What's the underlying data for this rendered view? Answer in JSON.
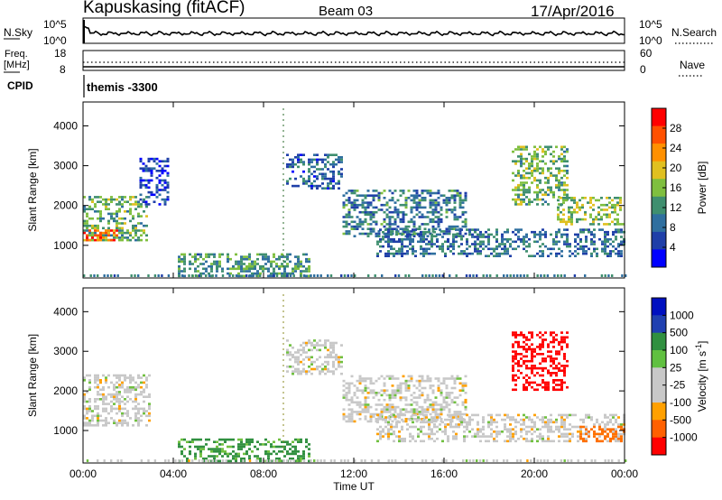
{
  "header": {
    "site": "Kapuskasing (fitACF)",
    "beam": "Beam 03",
    "date": "17/Apr/2016"
  },
  "nsky_panel": {
    "left_label": "N.Sky",
    "right_label": "N.Search",
    "left_ticks": [
      "10^5",
      "10^0"
    ],
    "right_ticks": [
      "10^5",
      "10^0"
    ]
  },
  "freq_panel": {
    "left_label_line1": "Freq.",
    "left_label_line2": "[MHz]",
    "right_label": "Nave",
    "left_ticks": [
      "18",
      "8"
    ],
    "right_ticks": [
      "60",
      "0"
    ]
  },
  "cpid": {
    "label": "CPID",
    "value": "themis -3300"
  },
  "colors": {
    "power_scale": [
      "#0000ff",
      "#1f3fa8",
      "#2f6f9f",
      "#3f8f6f",
      "#7fbf3f",
      "#e0c020",
      "#ff9000",
      "#ff5000",
      "#ff0000"
    ],
    "velocity_scale": [
      "#ff0000",
      "#ff6000",
      "#ffa000",
      "#c8c8c8",
      "#c8c8c8",
      "#60c040",
      "#308030",
      "#2040a0",
      "#0000c0"
    ]
  },
  "chart_data": [
    {
      "type": "heatmap",
      "title": "Power",
      "xlabel": "",
      "ylabel": "Slant Range [km]",
      "x_ticks": [
        "00:00",
        "04:00",
        "08:00",
        "12:00",
        "16:00",
        "20:00",
        "00:00"
      ],
      "y_ticks": [
        "1000",
        "2000",
        "3000",
        "4000"
      ],
      "ylim": [
        180,
        4600
      ],
      "xlim_hours": [
        0,
        24
      ],
      "colorbar": {
        "label": "Power [dB]",
        "ticks": [
          "4",
          "8",
          "12",
          "16",
          "20",
          "24",
          "28"
        ],
        "range": [
          0,
          32
        ]
      },
      "regions": [
        {
          "t0": 0.0,
          "t1": 2.8,
          "r0": 1100,
          "r1": 2200,
          "value": 14
        },
        {
          "t0": 0.0,
          "t1": 1.5,
          "r0": 1100,
          "r1": 1400,
          "value": 26
        },
        {
          "t0": 2.5,
          "t1": 3.8,
          "r0": 2000,
          "r1": 3200,
          "value": 5
        },
        {
          "t0": 4.2,
          "t1": 10.0,
          "r0": 200,
          "r1": 800,
          "value": 12
        },
        {
          "t0": 9.0,
          "t1": 11.5,
          "r0": 2400,
          "r1": 3300,
          "value": 8
        },
        {
          "t0": 11.5,
          "t1": 17.0,
          "r0": 1200,
          "r1": 2400,
          "value": 10
        },
        {
          "t0": 13.0,
          "t1": 24.0,
          "r0": 700,
          "r1": 1400,
          "value": 9
        },
        {
          "t0": 19.0,
          "t1": 21.5,
          "r0": 2000,
          "r1": 3500,
          "value": 15
        },
        {
          "t0": 21.0,
          "t1": 24.0,
          "r0": 1500,
          "r1": 2200,
          "value": 16
        }
      ]
    },
    {
      "type": "heatmap",
      "title": "Velocity",
      "xlabel": "Time UT",
      "ylabel": "Slant Range [km]",
      "x_ticks": [
        "00:00",
        "04:00",
        "08:00",
        "12:00",
        "16:00",
        "20:00",
        "00:00"
      ],
      "y_ticks": [
        "1000",
        "2000",
        "3000",
        "4000"
      ],
      "ylim": [
        180,
        4600
      ],
      "xlim_hours": [
        0,
        24
      ],
      "colorbar": {
        "label": "Velocity [m s^-1]",
        "ticks": [
          "1000",
          "500",
          "100",
          "25",
          "-25",
          "-100",
          "-500",
          "-1000"
        ],
        "range": [
          -1000,
          1000
        ]
      },
      "regions": [
        {
          "t0": 0.0,
          "t1": 3.0,
          "r0": 1100,
          "r1": 2400,
          "value": 0
        },
        {
          "t0": 4.2,
          "t1": 10.0,
          "r0": 200,
          "r1": 800,
          "value": 120
        },
        {
          "t0": 9.0,
          "t1": 11.5,
          "r0": 2400,
          "r1": 3300,
          "value": 0
        },
        {
          "t0": 11.5,
          "t1": 17.0,
          "r0": 1200,
          "r1": 2400,
          "value": 0
        },
        {
          "t0": 13.0,
          "t1": 24.0,
          "r0": 700,
          "r1": 1400,
          "value": 0
        },
        {
          "t0": 19.0,
          "t1": 21.5,
          "r0": 2000,
          "r1": 3500,
          "value": -600
        },
        {
          "t0": 22.0,
          "t1": 24.0,
          "r0": 700,
          "r1": 1100,
          "value": -300
        }
      ]
    }
  ]
}
